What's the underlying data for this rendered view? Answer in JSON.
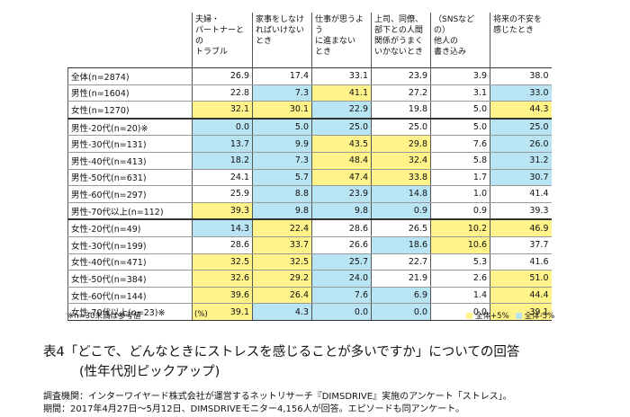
{
  "table": {
    "headers": [
      "夫婦・\nパートナーとの\nトラブル",
      "家事をしなけ\nればいけない\nとき",
      "仕事が思うよう\nに進まない\nとき",
      "上司、同僚、\n部下との人間\n関係がうまく\nいかないとき",
      "（SNSなどの）\n他人の\n書き込み",
      "将来の不安を\n感じたとき"
    ],
    "rows": [
      {
        "label": "全体(n=2874)",
        "values": [
          "26.9",
          "17.4",
          "33.1",
          "23.9",
          "3.9",
          "38.0"
        ],
        "colors": [
          null,
          null,
          null,
          null,
          null,
          null
        ]
      },
      {
        "label": "男性(n=1604)",
        "values": [
          "22.8",
          "7.3",
          "41.1",
          "27.2",
          "3.1",
          "33.0"
        ],
        "colors": [
          null,
          "#b9e4f4",
          "#fff38a",
          null,
          null,
          "#b9e4f4"
        ]
      },
      {
        "label": "女性(n=1270)",
        "values": [
          "32.1",
          "30.1",
          "22.9",
          "19.8",
          "5.0",
          "44.3"
        ],
        "colors": [
          "#fff38a",
          "#fff38a",
          "#b9e4f4",
          null,
          null,
          "#fff38a"
        ]
      },
      {
        "label": "男性-20代(n=20)※",
        "values": [
          "0.0",
          "5.0",
          "25.0",
          "25.0",
          "5.0",
          "25.0"
        ],
        "colors": [
          "#b9e4f4",
          "#b9e4f4",
          "#b9e4f4",
          null,
          null,
          "#b9e4f4"
        ]
      },
      {
        "label": "男性-30代(n=131)",
        "values": [
          "13.7",
          "9.9",
          "43.5",
          "29.8",
          "7.6",
          "26.0"
        ],
        "colors": [
          "#b9e4f4",
          "#b9e4f4",
          "#fff38a",
          "#fff38a",
          null,
          "#b9e4f4"
        ]
      },
      {
        "label": "男性-40代(n=413)",
        "values": [
          "18.2",
          "7.3",
          "48.4",
          "32.4",
          "5.8",
          "31.2"
        ],
        "colors": [
          "#b9e4f4",
          "#b9e4f4",
          "#fff38a",
          "#fff38a",
          null,
          "#b9e4f4"
        ]
      },
      {
        "label": "男性-50代(n=631)",
        "values": [
          "24.1",
          "5.7",
          "47.4",
          "33.8",
          "1.7",
          "30.7"
        ],
        "colors": [
          null,
          "#b9e4f4",
          "#fff38a",
          "#fff38a",
          null,
          "#b9e4f4"
        ]
      },
      {
        "label": "男性-60代(n=297)",
        "values": [
          "25.9",
          "8.8",
          "23.9",
          "14.8",
          "1.0",
          "41.4"
        ],
        "colors": [
          null,
          "#b9e4f4",
          "#b9e4f4",
          "#b9e4f4",
          null,
          null
        ]
      },
      {
        "label": "男性-70代以上(n=112)",
        "values": [
          "39.3",
          "9.8",
          "9.8",
          "0.9",
          "0.9",
          "39.3"
        ],
        "colors": [
          "#fff38a",
          "#b9e4f4",
          "#b9e4f4",
          "#b9e4f4",
          null,
          null
        ]
      },
      {
        "label": "女性-20代(n=49)",
        "values": [
          "14.3",
          "22.4",
          "28.6",
          "26.5",
          "10.2",
          "46.9"
        ],
        "colors": [
          "#b9e4f4",
          "#fff38a",
          null,
          null,
          "#fff38a",
          "#fff38a"
        ]
      },
      {
        "label": "女性-30代(n=199)",
        "values": [
          "28.6",
          "33.7",
          "26.6",
          "18.6",
          "10.6",
          "37.7"
        ],
        "colors": [
          null,
          "#fff38a",
          null,
          "#b9e4f4",
          "#fff38a",
          null
        ]
      },
      {
        "label": "女性-40代(n=471)",
        "values": [
          "32.5",
          "32.5",
          "25.7",
          "22.7",
          "5.3",
          "41.6"
        ],
        "colors": [
          "#fff38a",
          "#fff38a",
          "#b9e4f4",
          null,
          null,
          null
        ]
      },
      {
        "label": "女性-50代(n=384)",
        "values": [
          "32.6",
          "29.2",
          "24.0",
          "21.9",
          "2.6",
          "51.0"
        ],
        "colors": [
          "#fff38a",
          "#fff38a",
          "#b9e4f4",
          null,
          null,
          "#fff38a"
        ]
      },
      {
        "label": "女性-60代(n=144)",
        "values": [
          "39.6",
          "26.4",
          "7.6",
          "6.9",
          "1.4",
          "44.4"
        ],
        "colors": [
          "#fff38a",
          "#fff38a",
          "#b9e4f4",
          "#b9e4f4",
          null,
          "#fff38a"
        ]
      },
      {
        "label": "女性-70代以上(n=23)※",
        "values": [
          "39.1",
          "4.3",
          "0.0",
          "0.0",
          "0.0",
          "39.1"
        ],
        "colors": [
          "#fff38a",
          "#b9e4f4",
          "#b9e4f4",
          "#b9e4f4",
          null,
          "#fff38a"
        ]
      }
    ],
    "note": "※n=30未満は参考値",
    "unit": "(%)",
    "legend": [
      {
        "label": "全体+5%",
        "color": "#fff38a"
      },
      {
        "label": "全体-5%",
        "color": "#b9e4f4"
      }
    ]
  },
  "caption": {
    "line1": "表4「どこで、どんなときにストレスを感じることが多いですか」についての回答",
    "line2": "(性年代別ピックアップ)"
  },
  "source": {
    "line1": "調査機関：インターワイヤード株式会社が運営するネットリサーチ『DIMSDRIVE』実施のアンケート「ストレス」。",
    "line2": "期間：2017年4月27日～5月12日、DIMSDRIVEモニター4,156人が回答。エピソードも同アンケート。"
  }
}
